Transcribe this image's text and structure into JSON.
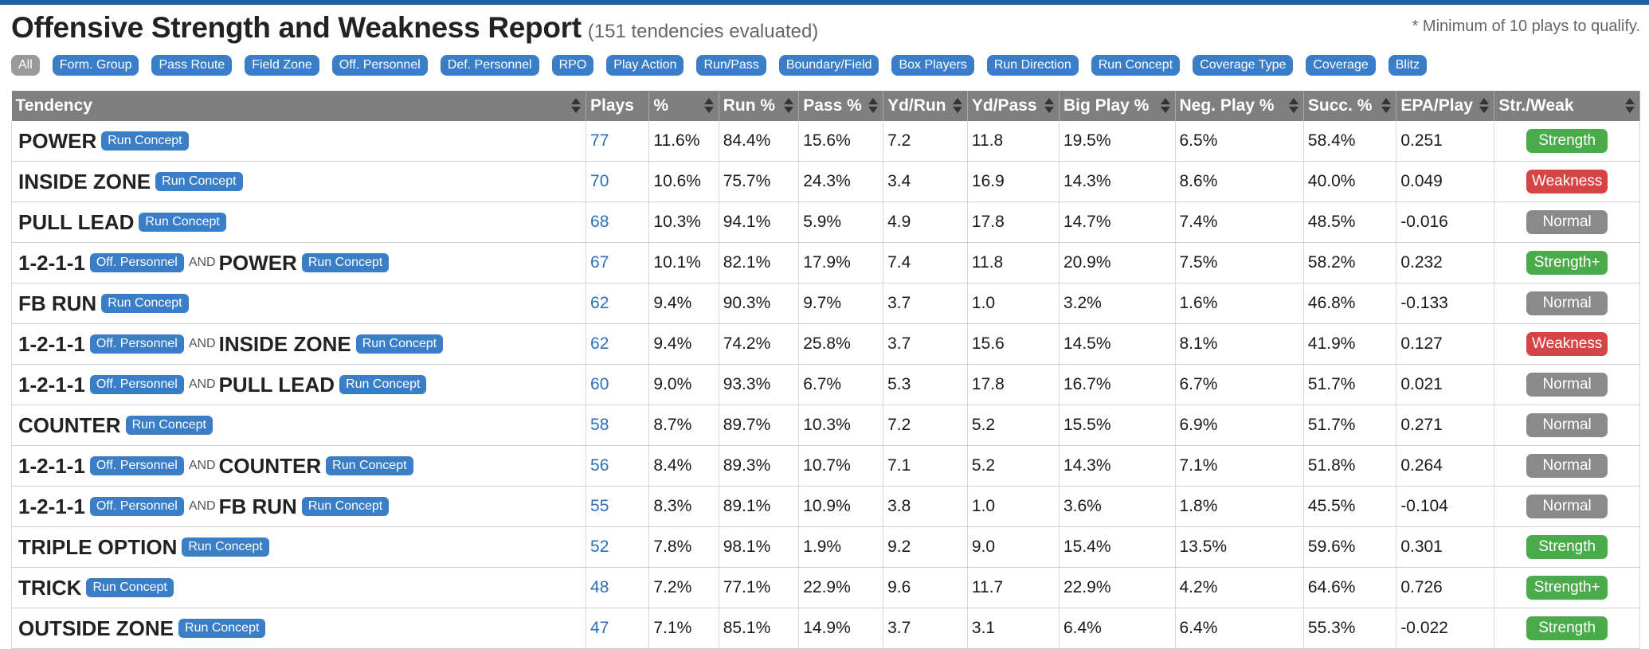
{
  "header": {
    "title": "Offensive Strength and Weakness Report",
    "subtitle": "(151 tendencies evaluated)",
    "note": "* Minimum of 10 plays to qualify."
  },
  "filters": [
    "All",
    "Form. Group",
    "Pass Route",
    "Field Zone",
    "Off. Personnel",
    "Def. Personnel",
    "RPO",
    "Play Action",
    "Run/Pass",
    "Boundary/Field",
    "Box Players",
    "Run Direction",
    "Run Concept",
    "Coverage Type",
    "Coverage",
    "Blitz"
  ],
  "columns": [
    "Tendency",
    "Plays",
    "%",
    "Run %",
    "Pass %",
    "Yd/Run",
    "Yd/Pass",
    "Big Play %",
    "Neg. Play %",
    "Succ. %",
    "EPA/Play",
    "Str./Weak"
  ],
  "and_label": "AND",
  "rows": [
    {
      "parts": [
        {
          "name": "POWER",
          "tag": "Run Concept"
        }
      ],
      "plays": "77",
      "pct": "11.6%",
      "run": "84.4%",
      "pass": "15.6%",
      "ydrun": "7.2",
      "ydpass": "11.8",
      "big": "19.5%",
      "neg": "6.5%",
      "succ": "58.4%",
      "epa": "0.251",
      "sw": "Strength"
    },
    {
      "parts": [
        {
          "name": "INSIDE ZONE",
          "tag": "Run Concept"
        }
      ],
      "plays": "70",
      "pct": "10.6%",
      "run": "75.7%",
      "pass": "24.3%",
      "ydrun": "3.4",
      "ydpass": "16.9",
      "big": "14.3%",
      "neg": "8.6%",
      "succ": "40.0%",
      "epa": "0.049",
      "sw": "Weakness"
    },
    {
      "parts": [
        {
          "name": "PULL LEAD",
          "tag": "Run Concept"
        }
      ],
      "plays": "68",
      "pct": "10.3%",
      "run": "94.1%",
      "pass": "5.9%",
      "ydrun": "4.9",
      "ydpass": "17.8",
      "big": "14.7%",
      "neg": "7.4%",
      "succ": "48.5%",
      "epa": "-0.016",
      "sw": "Normal"
    },
    {
      "parts": [
        {
          "name": "1-2-1-1",
          "tag": "Off. Personnel"
        },
        {
          "name": "POWER",
          "tag": "Run Concept"
        }
      ],
      "plays": "67",
      "pct": "10.1%",
      "run": "82.1%",
      "pass": "17.9%",
      "ydrun": "7.4",
      "ydpass": "11.8",
      "big": "20.9%",
      "neg": "7.5%",
      "succ": "58.2%",
      "epa": "0.232",
      "sw": "Strength+"
    },
    {
      "parts": [
        {
          "name": "FB RUN",
          "tag": "Run Concept"
        }
      ],
      "plays": "62",
      "pct": "9.4%",
      "run": "90.3%",
      "pass": "9.7%",
      "ydrun": "3.7",
      "ydpass": "1.0",
      "big": "3.2%",
      "neg": "1.6%",
      "succ": "46.8%",
      "epa": "-0.133",
      "sw": "Normal"
    },
    {
      "parts": [
        {
          "name": "1-2-1-1",
          "tag": "Off. Personnel"
        },
        {
          "name": "INSIDE ZONE",
          "tag": "Run Concept"
        }
      ],
      "plays": "62",
      "pct": "9.4%",
      "run": "74.2%",
      "pass": "25.8%",
      "ydrun": "3.7",
      "ydpass": "15.6",
      "big": "14.5%",
      "neg": "8.1%",
      "succ": "41.9%",
      "epa": "0.127",
      "sw": "Weakness"
    },
    {
      "parts": [
        {
          "name": "1-2-1-1",
          "tag": "Off. Personnel"
        },
        {
          "name": "PULL LEAD",
          "tag": "Run Concept"
        }
      ],
      "plays": "60",
      "pct": "9.0%",
      "run": "93.3%",
      "pass": "6.7%",
      "ydrun": "5.3",
      "ydpass": "17.8",
      "big": "16.7%",
      "neg": "6.7%",
      "succ": "51.7%",
      "epa": "0.021",
      "sw": "Normal"
    },
    {
      "parts": [
        {
          "name": "COUNTER",
          "tag": "Run Concept"
        }
      ],
      "plays": "58",
      "pct": "8.7%",
      "run": "89.7%",
      "pass": "10.3%",
      "ydrun": "7.2",
      "ydpass": "5.2",
      "big": "15.5%",
      "neg": "6.9%",
      "succ": "51.7%",
      "epa": "0.271",
      "sw": "Normal"
    },
    {
      "parts": [
        {
          "name": "1-2-1-1",
          "tag": "Off. Personnel"
        },
        {
          "name": "COUNTER",
          "tag": "Run Concept"
        }
      ],
      "plays": "56",
      "pct": "8.4%",
      "run": "89.3%",
      "pass": "10.7%",
      "ydrun": "7.1",
      "ydpass": "5.2",
      "big": "14.3%",
      "neg": "7.1%",
      "succ": "51.8%",
      "epa": "0.264",
      "sw": "Normal"
    },
    {
      "parts": [
        {
          "name": "1-2-1-1",
          "tag": "Off. Personnel"
        },
        {
          "name": "FB RUN",
          "tag": "Run Concept"
        }
      ],
      "plays": "55",
      "pct": "8.3%",
      "run": "89.1%",
      "pass": "10.9%",
      "ydrun": "3.8",
      "ydpass": "1.0",
      "big": "3.6%",
      "neg": "1.8%",
      "succ": "45.5%",
      "epa": "-0.104",
      "sw": "Normal"
    },
    {
      "parts": [
        {
          "name": "TRIPLE OPTION",
          "tag": "Run Concept"
        }
      ],
      "plays": "52",
      "pct": "7.8%",
      "run": "98.1%",
      "pass": "1.9%",
      "ydrun": "9.2",
      "ydpass": "9.0",
      "big": "15.4%",
      "neg": "13.5%",
      "succ": "59.6%",
      "epa": "0.301",
      "sw": "Strength"
    },
    {
      "parts": [
        {
          "name": "TRICK",
          "tag": "Run Concept"
        }
      ],
      "plays": "48",
      "pct": "7.2%",
      "run": "77.1%",
      "pass": "22.9%",
      "ydrun": "9.6",
      "ydpass": "11.7",
      "big": "22.9%",
      "neg": "4.2%",
      "succ": "64.6%",
      "epa": "0.726",
      "sw": "Strength+"
    },
    {
      "parts": [
        {
          "name": "OUTSIDE ZONE",
          "tag": "Run Concept"
        }
      ],
      "plays": "47",
      "pct": "7.1%",
      "run": "85.1%",
      "pass": "14.9%",
      "ydrun": "3.7",
      "ydpass": "3.1",
      "big": "6.4%",
      "neg": "6.4%",
      "succ": "55.3%",
      "epa": "-0.022",
      "sw": "Strength"
    }
  ],
  "colors": {
    "accent": "#3a7ec8",
    "strength": "#4aab4a",
    "weakness": "#d64545",
    "normal": "#8a8a8a",
    "header_bg": "#7f7f7f"
  }
}
